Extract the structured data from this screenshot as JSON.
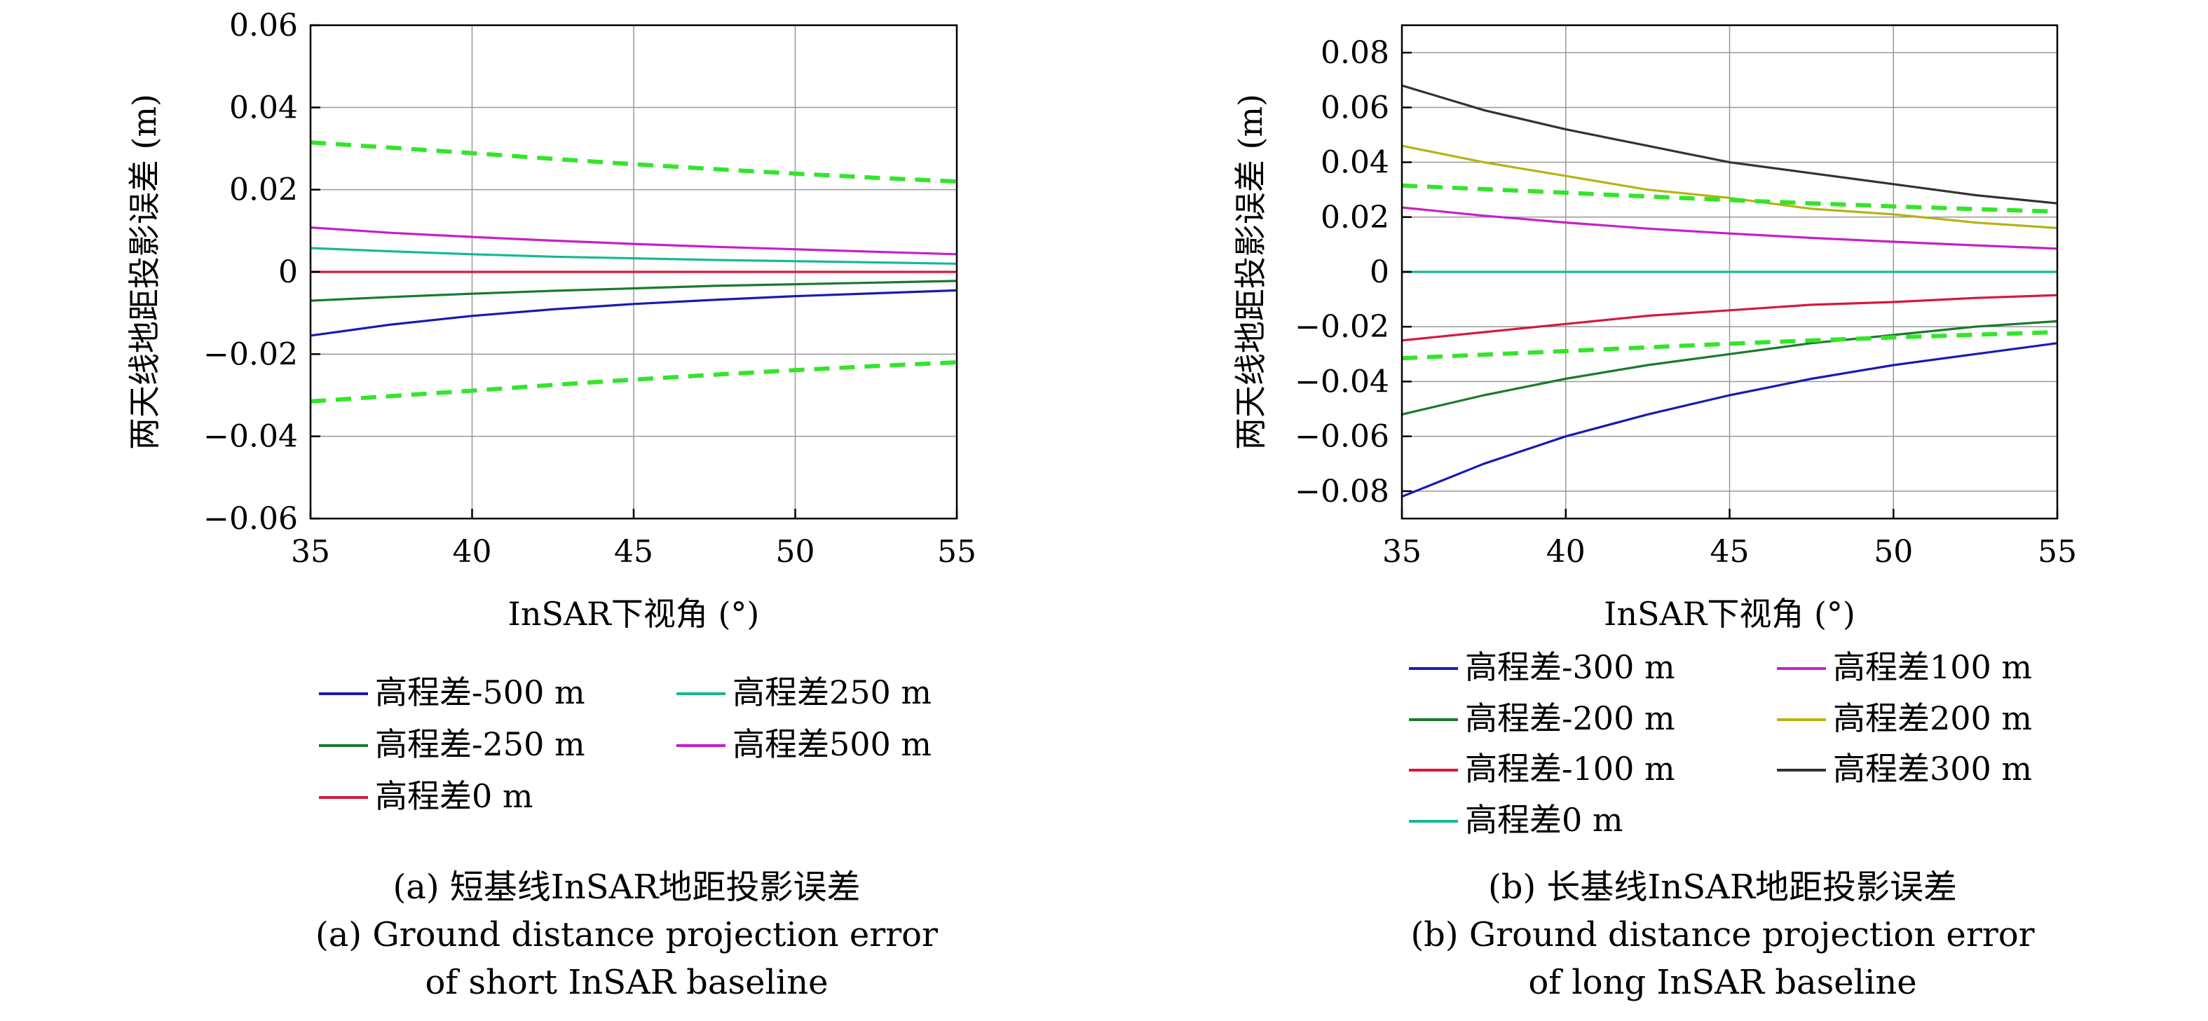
{
  "chart_data": [
    {
      "type": "line",
      "xlabel": "InSAR下视角 (°)",
      "ylabel": "两天线地距投影误差 (m)",
      "xlim": [
        35,
        55
      ],
      "ylim": [
        -0.06,
        0.06
      ],
      "xticks": [
        35,
        40,
        45,
        50,
        55
      ],
      "xtick_labels": [
        "35",
        "40",
        "45",
        "50",
        "55"
      ],
      "yticks": [
        -0.06,
        -0.04,
        -0.02,
        0,
        0.02,
        0.04,
        0.06
      ],
      "ytick_labels": [
        "−0.06",
        "−0.04",
        "−0.02",
        "0",
        "0.02",
        "0.04",
        "0.06"
      ],
      "grid": true,
      "x": [
        35,
        37.5,
        40,
        42.5,
        45,
        47.5,
        50,
        52.5,
        55
      ],
      "series": [
        {
          "name": "高程差-500 m",
          "color": "#1a1ab4",
          "values": [
            -0.0155,
            -0.0128,
            -0.0107,
            -0.0091,
            -0.0078,
            -0.0068,
            -0.0059,
            -0.0052,
            -0.0045
          ]
        },
        {
          "name": "高程差-250 m",
          "color": "#1a7a2e",
          "values": [
            -0.007,
            -0.0061,
            -0.0053,
            -0.0046,
            -0.004,
            -0.0034,
            -0.003,
            -0.0026,
            -0.0022
          ]
        },
        {
          "name": "高程差0 m",
          "color": "#d6183f",
          "values": [
            0,
            0,
            0,
            0,
            0,
            0,
            0,
            0,
            0
          ]
        },
        {
          "name": "高程差250 m",
          "color": "#17b894",
          "values": [
            0.0058,
            0.005,
            0.0043,
            0.0037,
            0.0033,
            0.0029,
            0.0026,
            0.0023,
            0.002
          ]
        },
        {
          "name": "高程差500 m",
          "color": "#c81ec8",
          "values": [
            0.0108,
            0.0095,
            0.0085,
            0.0076,
            0.0068,
            0.0061,
            0.0055,
            0.0049,
            0.0043
          ]
        },
        {
          "color": "#33e52a",
          "dashed": true,
          "values": [
            0.0315,
            0.0302,
            0.0289,
            0.0275,
            0.0262,
            0.025,
            0.0239,
            0.0229,
            0.022
          ]
        },
        {
          "color": "#33e52a",
          "dashed": true,
          "values": [
            -0.0315,
            -0.0302,
            -0.0289,
            -0.0275,
            -0.0262,
            -0.025,
            -0.0239,
            -0.0229,
            -0.022
          ]
        }
      ],
      "legend": {
        "placement": "bottom",
        "columns": 2,
        "order": [
          0,
          3,
          1,
          4,
          2
        ]
      },
      "caption": [
        "(a) 短基线InSAR地距投影误差",
        "(a) Ground distance projection error",
        "of short InSAR baseline"
      ]
    },
    {
      "type": "line",
      "xlabel": "InSAR下视角 (°)",
      "ylabel": "两天线地距投影误差 (m)",
      "xlim": [
        35,
        55
      ],
      "ylim": [
        -0.09,
        0.09
      ],
      "xticks": [
        35,
        40,
        45,
        50,
        55
      ],
      "xtick_labels": [
        "35",
        "40",
        "45",
        "50",
        "55"
      ],
      "yticks": [
        -0.08,
        -0.06,
        -0.04,
        -0.02,
        0,
        0.02,
        0.04,
        0.06,
        0.08
      ],
      "ytick_labels": [
        "−0.08",
        "−0.06",
        "−0.04",
        "−0.02",
        "0",
        "0.02",
        "0.04",
        "0.06",
        "0.08"
      ],
      "grid": true,
      "x": [
        35,
        37.5,
        40,
        42.5,
        45,
        47.5,
        50,
        52.5,
        55
      ],
      "series": [
        {
          "name": "高程差-300 m",
          "color": "#1a1ab4",
          "values": [
            -0.082,
            -0.07,
            -0.06,
            -0.052,
            -0.045,
            -0.039,
            -0.034,
            -0.03,
            -0.026
          ]
        },
        {
          "name": "高程差-200 m",
          "color": "#1a7a2e",
          "values": [
            -0.052,
            -0.045,
            -0.039,
            -0.034,
            -0.03,
            -0.026,
            -0.023,
            -0.02,
            -0.018
          ]
        },
        {
          "name": "高程差-100 m",
          "color": "#d6183f",
          "values": [
            -0.025,
            -0.022,
            -0.019,
            -0.016,
            -0.014,
            -0.012,
            -0.011,
            -0.0095,
            -0.0085
          ]
        },
        {
          "name": "高程差0 m",
          "color": "#17b894",
          "values": [
            0,
            0,
            0,
            0,
            0,
            0,
            0,
            0,
            0
          ]
        },
        {
          "name": "高程差100 m",
          "color": "#c81ec8",
          "values": [
            0.0235,
            0.0205,
            0.018,
            0.0158,
            0.014,
            0.0124,
            0.011,
            0.0097,
            0.0085
          ]
        },
        {
          "name": "高程差200 m",
          "color": "#b4b414",
          "values": [
            0.046,
            0.04,
            0.035,
            0.03,
            0.027,
            0.023,
            0.021,
            0.018,
            0.016
          ]
        },
        {
          "name": "高程差300 m",
          "color": "#333333",
          "values": [
            0.068,
            0.059,
            0.052,
            0.046,
            0.04,
            0.036,
            0.032,
            0.028,
            0.025
          ]
        },
        {
          "color": "#33e52a",
          "dashed": true,
          "values": [
            0.0315,
            0.0302,
            0.0289,
            0.0275,
            0.0262,
            0.025,
            0.0239,
            0.0229,
            0.022
          ]
        },
        {
          "color": "#33e52a",
          "dashed": true,
          "values": [
            -0.0315,
            -0.0302,
            -0.0289,
            -0.0275,
            -0.0262,
            -0.025,
            -0.0239,
            -0.0229,
            -0.022
          ]
        }
      ],
      "legend": {
        "placement": "bottom",
        "columns": 2,
        "order": [
          0,
          4,
          1,
          5,
          2,
          6,
          3
        ]
      },
      "caption": [
        "(b) 长基线InSAR地距投影误差",
        "(b) Ground distance projection error",
        "of long InSAR baseline"
      ]
    }
  ]
}
